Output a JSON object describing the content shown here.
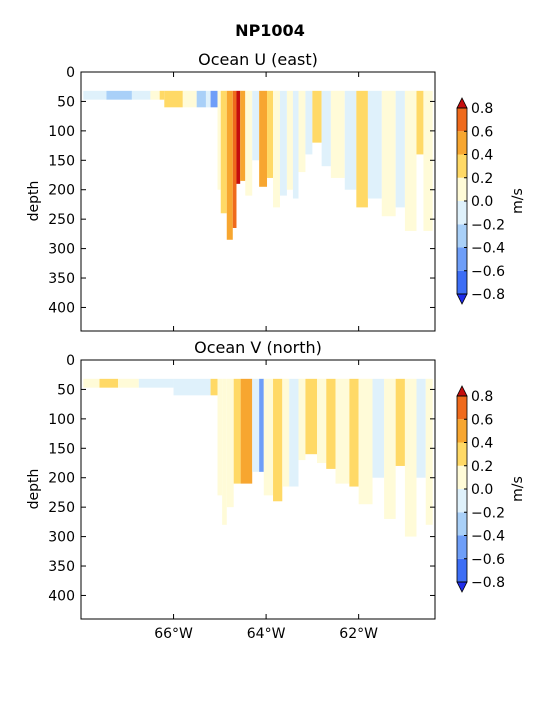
{
  "figure": {
    "title": "NP1004"
  },
  "colors": {
    "levels": [
      {
        "from": -0.8,
        "to": -0.6,
        "color": "#3d6ef5"
      },
      {
        "from": -0.6,
        "to": -0.4,
        "color": "#6e9ef8"
      },
      {
        "from": -0.4,
        "to": -0.2,
        "color": "#a9d0f8"
      },
      {
        "from": -0.2,
        "to": 0.0,
        "color": "#dff1fb"
      },
      {
        "from": 0.0,
        "to": 0.2,
        "color": "#fffbd8"
      },
      {
        "from": 0.2,
        "to": 0.4,
        "color": "#ffd966"
      },
      {
        "from": 0.4,
        "to": 0.6,
        "color": "#f7a630"
      },
      {
        "from": 0.6,
        "to": 0.8,
        "color": "#ef6a1c"
      }
    ],
    "under": "#1f2dea",
    "over": "#c40e0e"
  },
  "chart_data": [
    {
      "type": "heatmap",
      "title": "Ocean U (east)",
      "ylabel": "depth",
      "xlim": [
        -68.0,
        -60.35
      ],
      "ylim": [
        440,
        0
      ],
      "yticks": [
        "0",
        "50",
        "100",
        "150",
        "200",
        "250",
        "300",
        "350",
        "400"
      ],
      "xticks": [],
      "colorbar": {
        "label": "m/s",
        "ticks": [
          "0.8",
          "0.6",
          "0.4",
          "0.2",
          "0.0",
          "−0.2",
          "−0.4",
          "−0.6",
          "−0.8"
        ],
        "extend": "both"
      },
      "columns": [
        {
          "x0": -67.95,
          "x1": -67.45,
          "top": 32,
          "bottom": 47,
          "value": -0.1
        },
        {
          "x0": -67.45,
          "x1": -66.9,
          "top": 32,
          "bottom": 47,
          "value": -0.3
        },
        {
          "x0": -66.9,
          "x1": -66.5,
          "top": 32,
          "bottom": 47,
          "value": -0.1
        },
        {
          "x0": -66.5,
          "x1": -66.3,
          "top": 32,
          "bottom": 47,
          "value": 0.1
        },
        {
          "x0": -66.3,
          "x1": -66.2,
          "top": 32,
          "bottom": 47,
          "value": 0.3
        },
        {
          "x0": -66.2,
          "x1": -65.8,
          "top": 32,
          "bottom": 60,
          "value": 0.3
        },
        {
          "x0": -65.8,
          "x1": -65.5,
          "top": 32,
          "bottom": 60,
          "value": 0.1
        },
        {
          "x0": -65.5,
          "x1": -65.3,
          "top": 32,
          "bottom": 60,
          "value": -0.3
        },
        {
          "x0": -65.3,
          "x1": -65.2,
          "top": 32,
          "bottom": 60,
          "value": -0.1
        },
        {
          "x0": -65.2,
          "x1": -65.05,
          "top": 32,
          "bottom": 60,
          "value": -0.5
        },
        {
          "x0": -65.05,
          "x1": -64.98,
          "top": 32,
          "bottom": 200,
          "value": 0.1
        },
        {
          "x0": -64.98,
          "x1": -64.85,
          "top": 32,
          "bottom": 240,
          "value": 0.3
        },
        {
          "x0": -64.85,
          "x1": -64.72,
          "top": 32,
          "bottom": 285,
          "value": 0.5
        },
        {
          "x0": -64.72,
          "x1": -64.64,
          "top": 32,
          "bottom": 265,
          "value": 0.7
        },
        {
          "x0": -64.64,
          "x1": -64.56,
          "top": 32,
          "bottom": 190,
          "value": 0.9
        },
        {
          "x0": -64.56,
          "x1": -64.45,
          "top": 32,
          "bottom": 185,
          "value": 0.5
        },
        {
          "x0": -64.45,
          "x1": -64.3,
          "top": 32,
          "bottom": 210,
          "value": 0.1
        },
        {
          "x0": -64.3,
          "x1": -64.15,
          "top": 32,
          "bottom": 150,
          "value": -0.1
        },
        {
          "x0": -64.15,
          "x1": -63.98,
          "top": 32,
          "bottom": 195,
          "value": 0.5
        },
        {
          "x0": -63.98,
          "x1": -63.85,
          "top": 32,
          "bottom": 180,
          "value": 0.3
        },
        {
          "x0": -63.85,
          "x1": -63.7,
          "top": 32,
          "bottom": 230,
          "value": 0.1
        },
        {
          "x0": -63.7,
          "x1": -63.55,
          "top": 32,
          "bottom": 210,
          "value": -0.1
        },
        {
          "x0": -63.55,
          "x1": -63.42,
          "top": 32,
          "bottom": 200,
          "value": 0.1
        },
        {
          "x0": -63.42,
          "x1": -63.3,
          "top": 32,
          "bottom": 215,
          "value": -0.1
        },
        {
          "x0": -63.3,
          "x1": -63.15,
          "top": 32,
          "bottom": 170,
          "value": 0.1
        },
        {
          "x0": -63.15,
          "x1": -63.0,
          "top": 32,
          "bottom": 140,
          "value": -0.1
        },
        {
          "x0": -63.0,
          "x1": -62.8,
          "top": 32,
          "bottom": 120,
          "value": 0.3
        },
        {
          "x0": -62.8,
          "x1": -62.6,
          "top": 32,
          "bottom": 160,
          "value": -0.1
        },
        {
          "x0": -62.6,
          "x1": -62.3,
          "top": 32,
          "bottom": 180,
          "value": 0.1
        },
        {
          "x0": -62.3,
          "x1": -62.05,
          "top": 32,
          "bottom": 200,
          "value": -0.1
        },
        {
          "x0": -62.05,
          "x1": -61.8,
          "top": 32,
          "bottom": 230,
          "value": 0.3
        },
        {
          "x0": -61.8,
          "x1": -61.5,
          "top": 32,
          "bottom": 215,
          "value": -0.1
        },
        {
          "x0": -61.5,
          "x1": -61.2,
          "top": 32,
          "bottom": 245,
          "value": 0.1
        },
        {
          "x0": -61.2,
          "x1": -61.0,
          "top": 32,
          "bottom": 230,
          "value": -0.1
        },
        {
          "x0": -61.0,
          "x1": -60.75,
          "top": 32,
          "bottom": 270,
          "value": 0.1
        },
        {
          "x0": -60.75,
          "x1": -60.6,
          "top": 32,
          "bottom": 140,
          "value": 0.3
        },
        {
          "x0": -60.6,
          "x1": -60.4,
          "top": 32,
          "bottom": 270,
          "value": 0.1
        }
      ]
    },
    {
      "type": "heatmap",
      "title": "Ocean V (north)",
      "ylabel": "depth",
      "xlim": [
        -68.0,
        -60.35
      ],
      "ylim": [
        440,
        0
      ],
      "yticks": [
        "0",
        "50",
        "100",
        "150",
        "200",
        "250",
        "300",
        "350",
        "400"
      ],
      "xticks": [
        "66°W",
        "64°W",
        "62°W"
      ],
      "xtick_values": [
        -66,
        -64,
        -62
      ],
      "colorbar": {
        "label": "m/s",
        "ticks": [
          "0.8",
          "0.6",
          "0.4",
          "0.2",
          "0.0",
          "−0.2",
          "−0.4",
          "−0.6",
          "−0.8"
        ],
        "extend": "both"
      },
      "columns": [
        {
          "x0": -67.95,
          "x1": -67.6,
          "top": 32,
          "bottom": 47,
          "value": 0.1
        },
        {
          "x0": -67.6,
          "x1": -67.2,
          "top": 32,
          "bottom": 47,
          "value": 0.3
        },
        {
          "x0": -67.2,
          "x1": -66.75,
          "top": 32,
          "bottom": 47,
          "value": 0.1
        },
        {
          "x0": -66.75,
          "x1": -66.0,
          "top": 32,
          "bottom": 47,
          "value": -0.1
        },
        {
          "x0": -66.0,
          "x1": -65.2,
          "top": 32,
          "bottom": 60,
          "value": -0.1
        },
        {
          "x0": -65.2,
          "x1": -65.05,
          "top": 32,
          "bottom": 60,
          "value": 0.3
        },
        {
          "x0": -65.05,
          "x1": -64.95,
          "top": 32,
          "bottom": 230,
          "value": 0.1
        },
        {
          "x0": -64.95,
          "x1": -64.85,
          "top": 32,
          "bottom": 280,
          "value": 0.1
        },
        {
          "x0": -64.85,
          "x1": -64.7,
          "top": 32,
          "bottom": 250,
          "value": 0.1
        },
        {
          "x0": -64.7,
          "x1": -64.55,
          "top": 32,
          "bottom": 210,
          "value": 0.3
        },
        {
          "x0": -64.55,
          "x1": -64.3,
          "top": 32,
          "bottom": 210,
          "value": 0.5
        },
        {
          "x0": -64.3,
          "x1": -64.15,
          "top": 32,
          "bottom": 190,
          "value": -0.1
        },
        {
          "x0": -64.15,
          "x1": -64.05,
          "top": 32,
          "bottom": 190,
          "value": -0.5
        },
        {
          "x0": -64.05,
          "x1": -63.85,
          "top": 32,
          "bottom": 230,
          "value": 0.1
        },
        {
          "x0": -63.85,
          "x1": -63.65,
          "top": 32,
          "bottom": 240,
          "value": 0.3
        },
        {
          "x0": -63.65,
          "x1": -63.5,
          "top": 32,
          "bottom": 215,
          "value": 0.1
        },
        {
          "x0": -63.5,
          "x1": -63.3,
          "top": 32,
          "bottom": 215,
          "value": -0.1
        },
        {
          "x0": -63.3,
          "x1": -63.15,
          "top": 32,
          "bottom": 170,
          "value": 0.1
        },
        {
          "x0": -63.15,
          "x1": -62.9,
          "top": 32,
          "bottom": 160,
          "value": 0.3
        },
        {
          "x0": -62.9,
          "x1": -62.7,
          "top": 32,
          "bottom": 175,
          "value": 0.1
        },
        {
          "x0": -62.7,
          "x1": -62.5,
          "top": 32,
          "bottom": 185,
          "value": 0.3
        },
        {
          "x0": -62.5,
          "x1": -62.2,
          "top": 32,
          "bottom": 210,
          "value": 0.1
        },
        {
          "x0": -62.2,
          "x1": -62.0,
          "top": 32,
          "bottom": 215,
          "value": 0.3
        },
        {
          "x0": -62.0,
          "x1": -61.7,
          "top": 32,
          "bottom": 245,
          "value": 0.1
        },
        {
          "x0": -61.7,
          "x1": -61.45,
          "top": 32,
          "bottom": 200,
          "value": -0.1
        },
        {
          "x0": -61.45,
          "x1": -61.2,
          "top": 32,
          "bottom": 270,
          "value": 0.1
        },
        {
          "x0": -61.2,
          "x1": -61.0,
          "top": 32,
          "bottom": 180,
          "value": 0.3
        },
        {
          "x0": -61.0,
          "x1": -60.75,
          "top": 32,
          "bottom": 300,
          "value": 0.1
        },
        {
          "x0": -60.75,
          "x1": -60.55,
          "top": 32,
          "bottom": 200,
          "value": -0.1
        },
        {
          "x0": -60.55,
          "x1": -60.4,
          "top": 32,
          "bottom": 280,
          "value": 0.1
        }
      ]
    }
  ]
}
